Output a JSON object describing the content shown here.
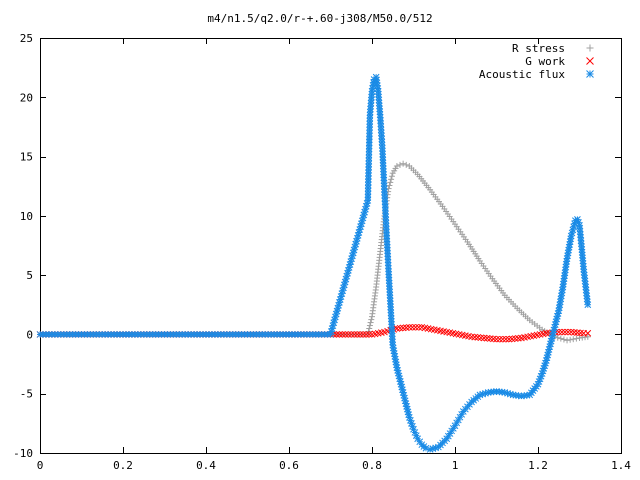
{
  "chart_data": {
    "type": "scatter",
    "title": "m4/n1.5/q2.0/r-+.60-j308/M50.0/512",
    "xlabel": "",
    "ylabel": "",
    "xlim": [
      0,
      1.4
    ],
    "ylim": [
      -10,
      25
    ],
    "grid": false,
    "legend_position": "top-right",
    "x_ticks": [
      0,
      0.2,
      0.4,
      0.6,
      0.8,
      1,
      1.2,
      1.4
    ],
    "x_tick_labels": [
      "0",
      "0.2",
      "0.4",
      "0.6",
      "0.8",
      "1",
      "1.2",
      "1.4"
    ],
    "y_ticks": [
      -10,
      -5,
      0,
      5,
      10,
      15,
      20,
      25
    ],
    "y_tick_labels": [
      "-10",
      "-5",
      "0",
      "5",
      "10",
      "15",
      "20",
      "25"
    ],
    "series": [
      {
        "name": "R stress",
        "marker": "plus",
        "color": "#a0a0a0",
        "x": [
          0,
          0.1,
          0.2,
          0.3,
          0.4,
          0.5,
          0.6,
          0.7,
          0.79,
          0.8,
          0.81,
          0.82,
          0.83,
          0.84,
          0.85,
          0.86,
          0.875,
          0.89,
          0.91,
          0.94,
          0.97,
          1.0,
          1.03,
          1.06,
          1.09,
          1.12,
          1.15,
          1.18,
          1.21,
          1.24,
          1.27,
          1.3,
          1.32
        ],
        "y": [
          0,
          0,
          0,
          0,
          0,
          0,
          0,
          0,
          0,
          1.5,
          4,
          7,
          10,
          12.3,
          13.6,
          14.2,
          14.4,
          14.2,
          13.5,
          12.2,
          10.8,
          9.3,
          7.8,
          6.2,
          4.7,
          3.3,
          2.2,
          1.2,
          0.4,
          -0.2,
          -0.5,
          -0.3,
          -0.2
        ]
      },
      {
        "name": "G work",
        "marker": "cross",
        "color": "#ff0000",
        "x": [
          0,
          0.1,
          0.2,
          0.3,
          0.4,
          0.5,
          0.6,
          0.7,
          0.8,
          0.83,
          0.86,
          0.89,
          0.92,
          0.95,
          0.98,
          1.01,
          1.04,
          1.07,
          1.1,
          1.13,
          1.16,
          1.19,
          1.22,
          1.25,
          1.28,
          1.31,
          1.32
        ],
        "y": [
          0,
          0,
          0,
          0,
          0,
          0,
          0,
          0,
          0,
          0.2,
          0.5,
          0.6,
          0.6,
          0.4,
          0.2,
          0,
          -0.2,
          -0.3,
          -0.4,
          -0.4,
          -0.3,
          -0.1,
          0.1,
          0.2,
          0.2,
          0.1,
          0.1
        ]
      },
      {
        "name": "Acoustic flux",
        "marker": "star",
        "color": "#1a8be6",
        "x": [
          0,
          0.1,
          0.2,
          0.3,
          0.4,
          0.5,
          0.6,
          0.7,
          0.79,
          0.795,
          0.8,
          0.805,
          0.81,
          0.815,
          0.82,
          0.825,
          0.83,
          0.835,
          0.84,
          0.85,
          0.86,
          0.87,
          0.88,
          0.89,
          0.9,
          0.91,
          0.92,
          0.93,
          0.94,
          0.96,
          0.98,
          1.0,
          1.02,
          1.04,
          1.06,
          1.08,
          1.1,
          1.12,
          1.14,
          1.16,
          1.18,
          1.2,
          1.21,
          1.22,
          1.23,
          1.24,
          1.25,
          1.26,
          1.27,
          1.28,
          1.29,
          1.295,
          1.3,
          1.305,
          1.31,
          1.315,
          1.32
        ],
        "y": [
          0,
          0,
          0,
          0,
          0,
          0,
          0,
          0,
          11.3,
          18.5,
          20.5,
          21.5,
          21.7,
          20.5,
          18.3,
          15.7,
          12,
          8.6,
          5.3,
          -0.9,
          -2.8,
          -4.2,
          -5.6,
          -7,
          -8,
          -8.8,
          -9.3,
          -9.6,
          -9.7,
          -9.5,
          -8.8,
          -7.7,
          -6.5,
          -5.7,
          -5.1,
          -4.9,
          -4.8,
          -4.9,
          -5.1,
          -5.2,
          -5.1,
          -4.2,
          -3.3,
          -2.2,
          -0.8,
          0.6,
          2,
          4,
          6.4,
          8.3,
          9.6,
          9.7,
          9.2,
          7.4,
          5.5,
          4,
          2.5
        ]
      }
    ]
  }
}
